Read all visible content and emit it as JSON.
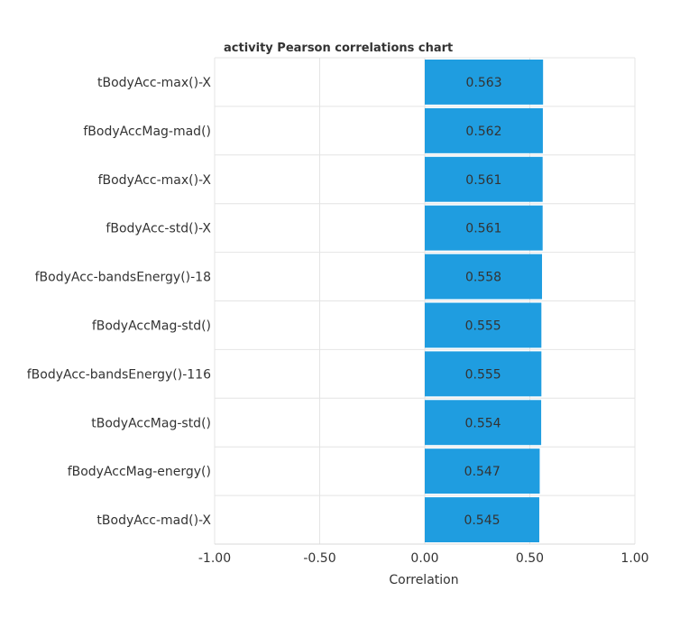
{
  "chart_data": {
    "type": "bar",
    "orientation": "horizontal",
    "title": "activity Pearson correlations chart",
    "xlabel": "Correlation",
    "ylabel": "",
    "xlim": [
      -1.0,
      1.0
    ],
    "x_ticks": [
      "-1.00",
      "-0.50",
      "0.00",
      "0.50",
      "1.00"
    ],
    "grid": true,
    "bar_color": "#1f9de0",
    "categories": [
      "tBodyAcc-max()-X",
      "fBodyAccMag-mad()",
      "fBodyAcc-max()-X",
      "fBodyAcc-std()-X",
      "fBodyAcc-bandsEnergy()-18",
      "fBodyAccMag-std()",
      "fBodyAcc-bandsEnergy()-116",
      "tBodyAccMag-std()",
      "fBodyAccMag-energy()",
      "tBodyAcc-mad()-X"
    ],
    "values": [
      0.563,
      0.562,
      0.561,
      0.561,
      0.558,
      0.555,
      0.555,
      0.554,
      0.547,
      0.545
    ],
    "value_labels": [
      "0.563",
      "0.562",
      "0.561",
      "0.561",
      "0.558",
      "0.555",
      "0.555",
      "0.554",
      "0.547",
      "0.545"
    ]
  }
}
